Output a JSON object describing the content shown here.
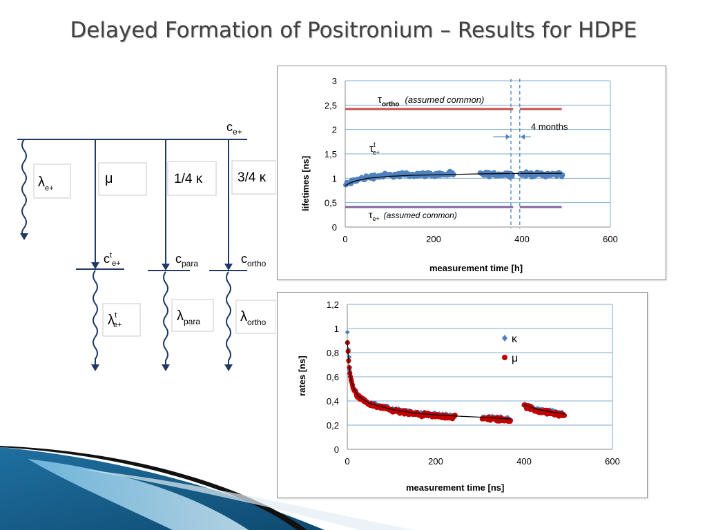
{
  "slide": {
    "title": "Delayed Formation of Positronium – Results for HDPE"
  },
  "scheme": {
    "entry_label": {
      "main": "c",
      "sub": "e+"
    },
    "branch_boxes": [
      {
        "sym": "λ",
        "sub": "e+"
      },
      {
        "sym": "μ",
        "sub": ""
      },
      {
        "sym": "1/4 κ",
        "sub": ""
      },
      {
        "sym": "3/4 κ",
        "sub": ""
      }
    ],
    "state_labels": [
      {
        "main": "c",
        "sup": "t",
        "sub": "e+"
      },
      {
        "main": "c",
        "sup": "",
        "sub": "para"
      },
      {
        "main": "c",
        "sup": "",
        "sub": "ortho"
      }
    ],
    "decay_boxes": [
      {
        "sym": "λ",
        "sup": "t",
        "sub": "e+"
      },
      {
        "sym": "λ",
        "sup": "",
        "sub": "para"
      },
      {
        "sym": "λ",
        "sup": "",
        "sub": "ortho"
      }
    ]
  },
  "chart_data": [
    {
      "type": "scatter",
      "xlabel": "measurement time [h]",
      "ylabel": "lifetimes [ns]",
      "xlim": [
        0,
        600
      ],
      "ylim": [
        0,
        3
      ],
      "x_ticks": [
        "0",
        "200",
        "400",
        "600"
      ],
      "y_ticks": [
        "0",
        "0,5",
        "1",
        "1,5",
        "2",
        "2,5",
        "3"
      ],
      "grid": true,
      "colors": {
        "tau_ortho": "#c0504d",
        "tau_e": "#8064a2",
        "tau_t": "#4f81bd",
        "fit": "#000000",
        "marker": "#4f81bd"
      },
      "annotations": {
        "tau_ortho": {
          "sym": "τ",
          "sub": "ortho",
          "note": "(assumed common)"
        },
        "tau_e": {
          "sym": "τ",
          "sub": "e+",
          "note": "(assumed common)"
        },
        "tau_t": {
          "sym": "τ",
          "sup": "t",
          "sub": "e+"
        },
        "gap": "4 months"
      },
      "series": [
        {
          "segments": [
            [
              0,
              380
            ],
            [
              395,
              490
            ]
          ],
          "value": 2.42
        },
        {
          "segments": [
            [
              0,
              380
            ],
            [
              395,
              490
            ]
          ],
          "value": 0.41
        },
        {
          "ranges": [
            [
              0,
              245
            ],
            [
              305,
              380
            ],
            [
              395,
              492
            ]
          ],
          "level": 1.1
        }
      ],
      "fit_points": [
        [
          0,
          0.85
        ],
        [
          10,
          0.9
        ],
        [
          25,
          0.95
        ],
        [
          50,
          1.0
        ],
        [
          100,
          1.04
        ],
        [
          150,
          1.06
        ],
        [
          200,
          1.07
        ],
        [
          250,
          1.08
        ],
        [
          300,
          1.09
        ],
        [
          400,
          1.1
        ],
        [
          490,
          1.1
        ]
      ],
      "gap_markers_x": [
        375,
        395
      ]
    },
    {
      "type": "scatter",
      "xlabel": "measurement time [ns]",
      "ylabel": "rates [ns]",
      "xlim": [
        0,
        600
      ],
      "ylim": [
        0,
        1.2
      ],
      "x_ticks": [
        "0",
        "200",
        "400",
        "600"
      ],
      "y_ticks": [
        "0",
        "0,2",
        "0,4",
        "0,6",
        "0,8",
        "1",
        "1,2"
      ],
      "grid": true,
      "colors": {
        "kappa": "#4f81bd",
        "mu": "#c00000",
        "fit": "#000000"
      },
      "series": [
        {
          "name": "κ",
          "marker": "diamond"
        },
        {
          "name": "μ",
          "marker": "circle"
        }
      ],
      "segments": [
        {
          "x": [
            0,
            245
          ],
          "fit": [
            [
              0,
              0.9
            ],
            [
              3,
              0.72
            ],
            [
              8,
              0.58
            ],
            [
              15,
              0.5
            ],
            [
              25,
              0.44
            ],
            [
              50,
              0.38
            ],
            [
              100,
              0.33
            ],
            [
              150,
              0.3
            ],
            [
              200,
              0.285
            ],
            [
              245,
              0.275
            ]
          ]
        },
        {
          "x": [
            305,
            370
          ],
          "fit": [
            [
              305,
              0.265
            ],
            [
              370,
              0.25
            ]
          ]
        },
        {
          "x": [
            400,
            492
          ],
          "fit": [
            [
              400,
              0.37
            ],
            [
              430,
              0.33
            ],
            [
              492,
              0.29
            ]
          ]
        }
      ]
    }
  ]
}
